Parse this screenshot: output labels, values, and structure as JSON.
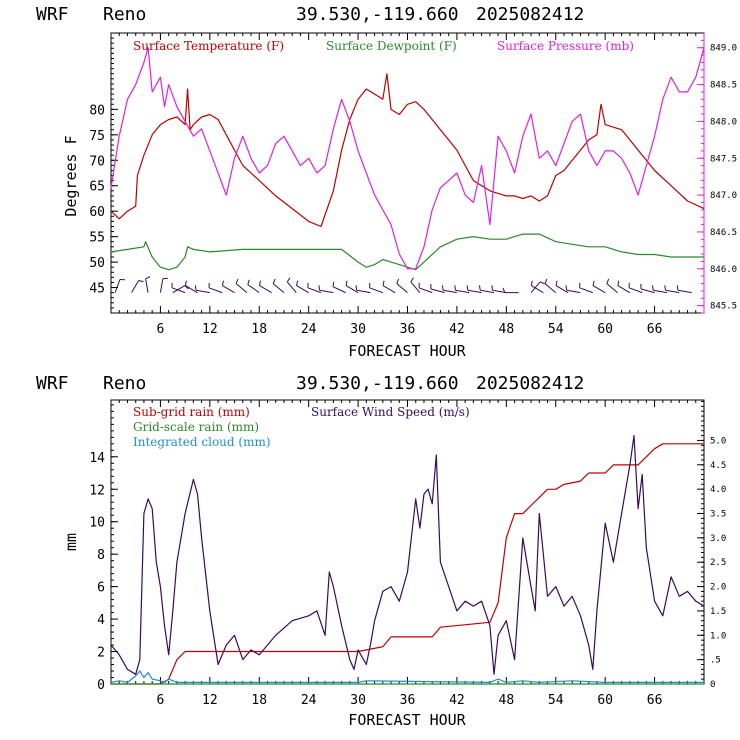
{
  "colors": {
    "temperature": "#c00000",
    "dewpoint": "#2a8a2a",
    "pressure": "#e020e0",
    "subgrid_rain": "#c00000",
    "gridscale_rain": "#2a8a2a",
    "integrated_cloud": "#1f8fd0",
    "wind_speed": "#3a0a5a",
    "wind_barbs": "#3a0a5a",
    "frame": "#000000"
  },
  "chart_data": [
    {
      "type": "line",
      "header": {
        "model": "WRF",
        "station": "Reno",
        "coords": "39.530,-119.660",
        "init": "2025082412"
      },
      "xlabel": "FORECAST HOUR",
      "ylabel": "Degrees F",
      "xlim": [
        0,
        72
      ],
      "xticks": [
        6,
        12,
        18,
        24,
        30,
        36,
        42,
        48,
        54,
        60,
        66
      ],
      "ylim": [
        40,
        95
      ],
      "yticks": [
        45,
        50,
        55,
        60,
        65,
        70,
        75,
        80
      ],
      "y2lim": [
        845.4,
        849.2
      ],
      "y2ticks": [
        845.5,
        846.0,
        846.5,
        847.0,
        847.5,
        848.0,
        848.5,
        849.0
      ],
      "y2ticklabels": [
        "845.5",
        "846.0",
        "846.5",
        "847.0",
        "847.5",
        "848.0",
        "848.5",
        "849.0"
      ],
      "series": [
        {
          "name": "Surface Temperature (F)",
          "color_key": "temperature",
          "axis": "left",
          "x": [
            0,
            1,
            2,
            3,
            3.2,
            4,
            5,
            6,
            7,
            8,
            9,
            9.3,
            9.6,
            10,
            11,
            12,
            13,
            14,
            15,
            16,
            18,
            20,
            22,
            24,
            25.5,
            27,
            28,
            29,
            30,
            31,
            32,
            33,
            33.5,
            34,
            35,
            36,
            37,
            38,
            40,
            42,
            44,
            46,
            47,
            48,
            49,
            50,
            51,
            52,
            53,
            54,
            55,
            56,
            57,
            58,
            59,
            59.5,
            60,
            61,
            62,
            63,
            64,
            66,
            68,
            70,
            72
          ],
          "values": [
            60,
            58.5,
            60,
            61,
            67,
            71,
            75,
            77,
            78,
            78.5,
            77,
            84,
            76,
            77,
            78.5,
            79,
            78,
            75,
            72,
            69,
            66,
            63,
            60.5,
            58,
            57,
            64,
            72,
            78,
            82,
            84,
            83,
            82,
            87,
            80,
            79,
            81,
            81.5,
            80,
            76,
            72,
            66,
            64,
            63.5,
            63,
            63,
            62.5,
            63,
            62,
            63,
            67,
            68,
            70,
            72,
            74,
            75,
            81,
            77,
            76.5,
            76,
            74,
            72,
            68,
            65,
            62,
            60.5
          ]
        },
        {
          "name": "Surface Dewpoint (F)",
          "color_key": "dewpoint",
          "axis": "left",
          "x": [
            0,
            2,
            4,
            4.2,
            5,
            6,
            7,
            8,
            9,
            9.3,
            10,
            12,
            16,
            20,
            24,
            28,
            30,
            31,
            32,
            33,
            34,
            35,
            36,
            37,
            38,
            40,
            42,
            44,
            46,
            48,
            50,
            52,
            54,
            56,
            58,
            60,
            62,
            64,
            66,
            68,
            70,
            72
          ],
          "values": [
            52,
            52.5,
            53,
            54,
            51,
            49,
            48.5,
            49,
            51,
            53,
            52.5,
            52,
            52.5,
            52.5,
            52.5,
            52.5,
            50,
            49,
            49.5,
            50.5,
            50,
            49.5,
            49,
            48.5,
            50,
            53,
            54.5,
            55,
            54.5,
            54.5,
            55.5,
            55.5,
            54,
            53.5,
            53,
            53,
            52,
            51.5,
            51.5,
            51,
            51,
            51
          ]
        },
        {
          "name": "Surface Pressure (mb)",
          "color_key": "pressure",
          "axis": "right",
          "x": [
            0,
            1,
            2,
            3,
            4,
            4.5,
            5,
            6,
            6.5,
            7,
            8,
            9,
            10,
            11,
            12,
            13,
            14,
            15,
            16,
            17,
            18,
            19,
            20,
            21,
            22,
            23,
            24,
            25,
            26,
            27,
            28,
            29,
            30,
            31,
            32,
            33,
            34,
            35,
            36,
            37,
            38,
            39,
            40,
            41,
            42,
            43,
            44,
            45,
            46,
            47,
            48,
            49,
            50,
            51,
            52,
            53,
            54,
            55,
            56,
            57,
            58,
            59,
            60,
            61,
            62,
            63,
            64,
            65,
            66,
            67,
            68,
            69,
            70,
            71,
            72
          ],
          "values": [
            847.1,
            847.8,
            848.3,
            848.5,
            848.8,
            849.0,
            848.4,
            848.6,
            848.2,
            848.5,
            848.2,
            848.0,
            847.8,
            847.9,
            847.6,
            847.3,
            847.0,
            847.5,
            847.8,
            847.5,
            847.3,
            847.4,
            847.7,
            847.8,
            847.6,
            847.4,
            847.5,
            847.3,
            847.4,
            847.9,
            848.3,
            848.0,
            847.6,
            847.3,
            847.0,
            846.8,
            846.6,
            846.2,
            846.0,
            846.0,
            846.3,
            846.8,
            847.1,
            847.2,
            847.3,
            847.0,
            846.9,
            847.4,
            846.6,
            847.8,
            847.6,
            847.3,
            847.8,
            848.1,
            847.5,
            847.6,
            847.4,
            847.7,
            848.0,
            848.1,
            847.6,
            847.4,
            847.6,
            847.6,
            847.5,
            847.3,
            847.0,
            847.4,
            847.8,
            848.3,
            848.6,
            848.4,
            848.4,
            848.6,
            849.0
          ]
        }
      ],
      "wind_barbs": {
        "y_level": 44,
        "x": [
          0.5,
          2.5,
          4.5,
          6,
          7.5,
          9,
          10.5,
          12,
          13.5,
          15,
          16.5,
          18,
          19.5,
          21,
          22.5,
          24,
          25.5,
          27,
          28.5,
          30,
          31.5,
          33,
          34.5,
          36,
          37.5,
          39,
          40.5,
          42,
          43.5,
          45,
          46.5,
          48,
          49.5,
          51,
          52.5,
          54,
          55.5,
          57,
          58.5,
          60,
          61.5,
          63,
          64.5,
          66,
          67.5,
          69,
          70.5
        ],
        "direction_deg": [
          20,
          30,
          350,
          10,
          60,
          290,
          300,
          280,
          290,
          300,
          310,
          305,
          300,
          310,
          320,
          300,
          290,
          280,
          295,
          300,
          280,
          290,
          300,
          310,
          320,
          290,
          285,
          280,
          280,
          280,
          280,
          280,
          270,
          40,
          300,
          310,
          300,
          280,
          290,
          300,
          310,
          300,
          290,
          285,
          280,
          280,
          280
        ]
      },
      "legend": "top"
    },
    {
      "type": "line",
      "header": {
        "model": "WRF",
        "station": "Reno",
        "coords": "39.530,-119.660",
        "init": "2025082412"
      },
      "xlabel": "FORECAST HOUR",
      "ylabel": "mm",
      "xlim": [
        0,
        72
      ],
      "xticks": [
        6,
        12,
        18,
        24,
        30,
        36,
        42,
        48,
        54,
        60,
        66
      ],
      "ylim": [
        0,
        17.5
      ],
      "yticks": [
        0,
        2,
        4,
        6,
        8,
        10,
        12,
        14
      ],
      "y2lim": [
        0,
        5.83
      ],
      "y2ticks": [
        0,
        0.5,
        1.0,
        1.5,
        2.0,
        2.5,
        3.0,
        3.5,
        4.0,
        4.5,
        5.0
      ],
      "y2ticklabels": [
        "0",
        ".5",
        "1.0",
        "1.5",
        "2.0",
        "2.5",
        "3.0",
        "3.5",
        "4.0",
        "4.5",
        "5.0"
      ],
      "series": [
        {
          "name": "Sub-grid rain (mm)",
          "color_key": "subgrid_rain",
          "axis": "left",
          "x": [
            0,
            6,
            7,
            8,
            9,
            30,
            33,
            34,
            39,
            40,
            46,
            47,
            48,
            49,
            50,
            51,
            52,
            53,
            54,
            55,
            57,
            58,
            60,
            61,
            62,
            64,
            65,
            66,
            67,
            72
          ],
          "values": [
            0,
            0,
            0.3,
            1.5,
            2.0,
            2.0,
            2.3,
            2.9,
            2.9,
            3.5,
            3.8,
            5.0,
            9.0,
            10.5,
            10.5,
            11.0,
            11.5,
            12.0,
            12.0,
            12.3,
            12.5,
            13.0,
            13.0,
            13.5,
            13.5,
            13.5,
            14.0,
            14.5,
            14.8,
            14.8
          ]
        },
        {
          "name": "Grid-scale rain (mm)",
          "color_key": "gridscale_rain",
          "axis": "left",
          "x": [
            0,
            72
          ],
          "values": [
            0,
            0
          ]
        },
        {
          "name": "Integrated cloud (mm)",
          "color_key": "integrated_cloud",
          "axis": "left",
          "x": [
            0,
            1,
            2,
            3,
            3.5,
            4,
            4.5,
            5,
            6,
            6.5,
            7,
            8,
            30,
            31,
            46,
            47,
            48,
            50,
            52,
            56,
            60,
            62,
            72
          ],
          "values": [
            0.1,
            0.2,
            0.1,
            0.5,
            0.8,
            0.4,
            0.7,
            0.3,
            0.2,
            0.1,
            0.3,
            0.1,
            0.1,
            0.2,
            0.1,
            0.3,
            0.1,
            0.2,
            0.1,
            0.2,
            0.1,
            0.1,
            0.1
          ]
        },
        {
          "name": "Surface Wind Speed (m/s)",
          "color_key": "wind_speed",
          "axis": "right",
          "x": [
            0,
            1,
            2,
            3,
            3.5,
            4,
            4.5,
            5,
            5.5,
            6,
            6.5,
            7,
            7.5,
            8,
            9,
            10,
            10.5,
            11,
            12,
            13,
            14,
            15,
            16,
            17,
            18,
            20,
            22,
            24,
            25,
            26,
            26.5,
            27,
            28,
            29,
            29.5,
            30,
            31,
            31.5,
            32,
            33,
            34,
            35,
            36,
            37,
            37.5,
            38,
            38.5,
            39,
            39.5,
            40,
            41,
            42,
            43,
            44,
            45,
            46,
            46.5,
            47,
            48,
            49,
            50,
            51,
            51.5,
            52,
            53,
            54,
            55,
            56,
            57,
            58,
            58.5,
            59,
            60,
            61,
            62,
            63,
            63.5,
            64,
            64.5,
            65,
            66,
            67,
            68,
            69,
            70,
            71,
            72
          ],
          "values": [
            0.8,
            0.6,
            0.3,
            0.2,
            0.5,
            3.5,
            3.8,
            3.6,
            2.5,
            2.0,
            1.2,
            0.6,
            1.5,
            2.5,
            3.5,
            4.2,
            3.9,
            3.0,
            1.5,
            0.4,
            0.8,
            1.0,
            0.5,
            0.7,
            0.6,
            1.0,
            1.3,
            1.4,
            1.5,
            1.0,
            2.3,
            2.0,
            1.2,
            0.5,
            0.3,
            0.7,
            0.4,
            0.8,
            1.3,
            1.9,
            2.0,
            1.7,
            2.3,
            3.8,
            3.2,
            3.9,
            4.0,
            3.7,
            4.7,
            2.5,
            2.0,
            1.5,
            1.7,
            1.6,
            1.7,
            1.2,
            0.2,
            1.0,
            1.3,
            0.5,
            3.0,
            2.0,
            1.5,
            3.5,
            1.8,
            2.0,
            1.6,
            1.8,
            1.4,
            0.8,
            0.3,
            1.5,
            3.3,
            2.5,
            3.5,
            4.5,
            5.1,
            3.6,
            4.3,
            2.8,
            1.7,
            1.4,
            2.2,
            1.8,
            1.9,
            1.7,
            1.6
          ]
        }
      ],
      "legend": "top"
    }
  ]
}
